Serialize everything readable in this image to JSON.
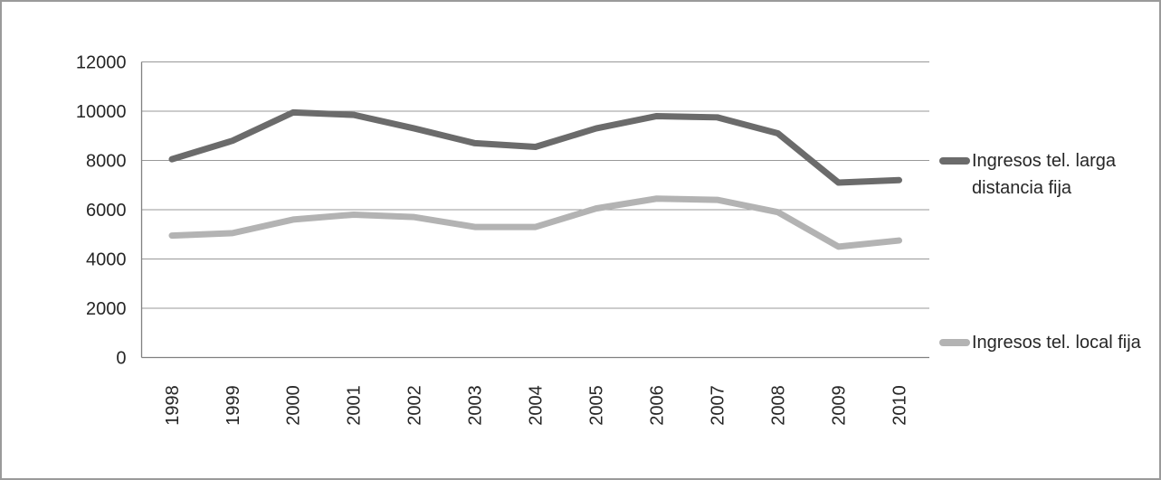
{
  "chart_data": {
    "type": "line",
    "categories": [
      "1998",
      "1999",
      "2000",
      "2001",
      "2002",
      "2003",
      "2004",
      "2005",
      "2006",
      "2007",
      "2008",
      "2009",
      "2010"
    ],
    "series": [
      {
        "name": "Ingresos tel. larga distancia fija",
        "color": "#6b6b6b",
        "values": [
          8050,
          8800,
          9950,
          9850,
          9300,
          8700,
          8550,
          9300,
          9800,
          9750,
          9100,
          7100,
          7200
        ]
      },
      {
        "name": "Ingresos tel. local fija",
        "color": "#b3b3b3",
        "values": [
          4950,
          5050,
          5600,
          5800,
          5700,
          5300,
          5300,
          6050,
          6450,
          6400,
          5900,
          4500,
          4750
        ]
      }
    ],
    "title": "",
    "xlabel": "",
    "ylabel": "",
    "ylim": [
      0,
      12000
    ],
    "yticks": [
      0,
      2000,
      4000,
      6000,
      8000,
      10000,
      12000
    ],
    "grid": "horizontal",
    "legend_position": "right",
    "x_tick_rotation": -90
  },
  "styles": {
    "gridline_color": "#999999",
    "axis_color": "#808080",
    "text_color": "#262626",
    "frame_border_color": "#9a9a9a",
    "background": "#ffffff"
  }
}
